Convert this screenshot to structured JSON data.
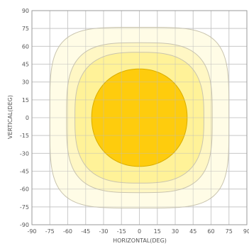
{
  "chart_data": {
    "type": "heatmap",
    "title": "",
    "xlabel": "HORIZONTAL(DEG)",
    "ylabel": "VERTICAL(DEG)",
    "xlim": [
      -90,
      90
    ],
    "ylim": [
      -90,
      90
    ],
    "x_ticks": [
      -90,
      -75,
      -60,
      -45,
      -30,
      -15,
      0,
      15,
      30,
      45,
      60,
      75,
      90
    ],
    "y_ticks": [
      90,
      75,
      60,
      45,
      30,
      15,
      0,
      -15,
      -30,
      -45,
      -60,
      -75,
      -90
    ],
    "grid": true,
    "contours": [
      {
        "half_width": 75,
        "half_height": 76,
        "exponent": 4.2,
        "color": "#fffbe2"
      },
      {
        "half_width": 61,
        "half_height": 63,
        "exponent": 3.4,
        "color": "#fff6bd"
      },
      {
        "half_width": 54,
        "half_height": 55,
        "exponent": 2.9,
        "color": "#fff191"
      },
      {
        "half_width": 40,
        "half_height": 41,
        "exponent": 2.1,
        "color": "#fecc0d"
      }
    ],
    "contour_stroke": "#c9c4ae",
    "core_stroke": "#d9ad00",
    "grid_color": "#d7d7d7",
    "frame_color": "#9a9a9a"
  }
}
